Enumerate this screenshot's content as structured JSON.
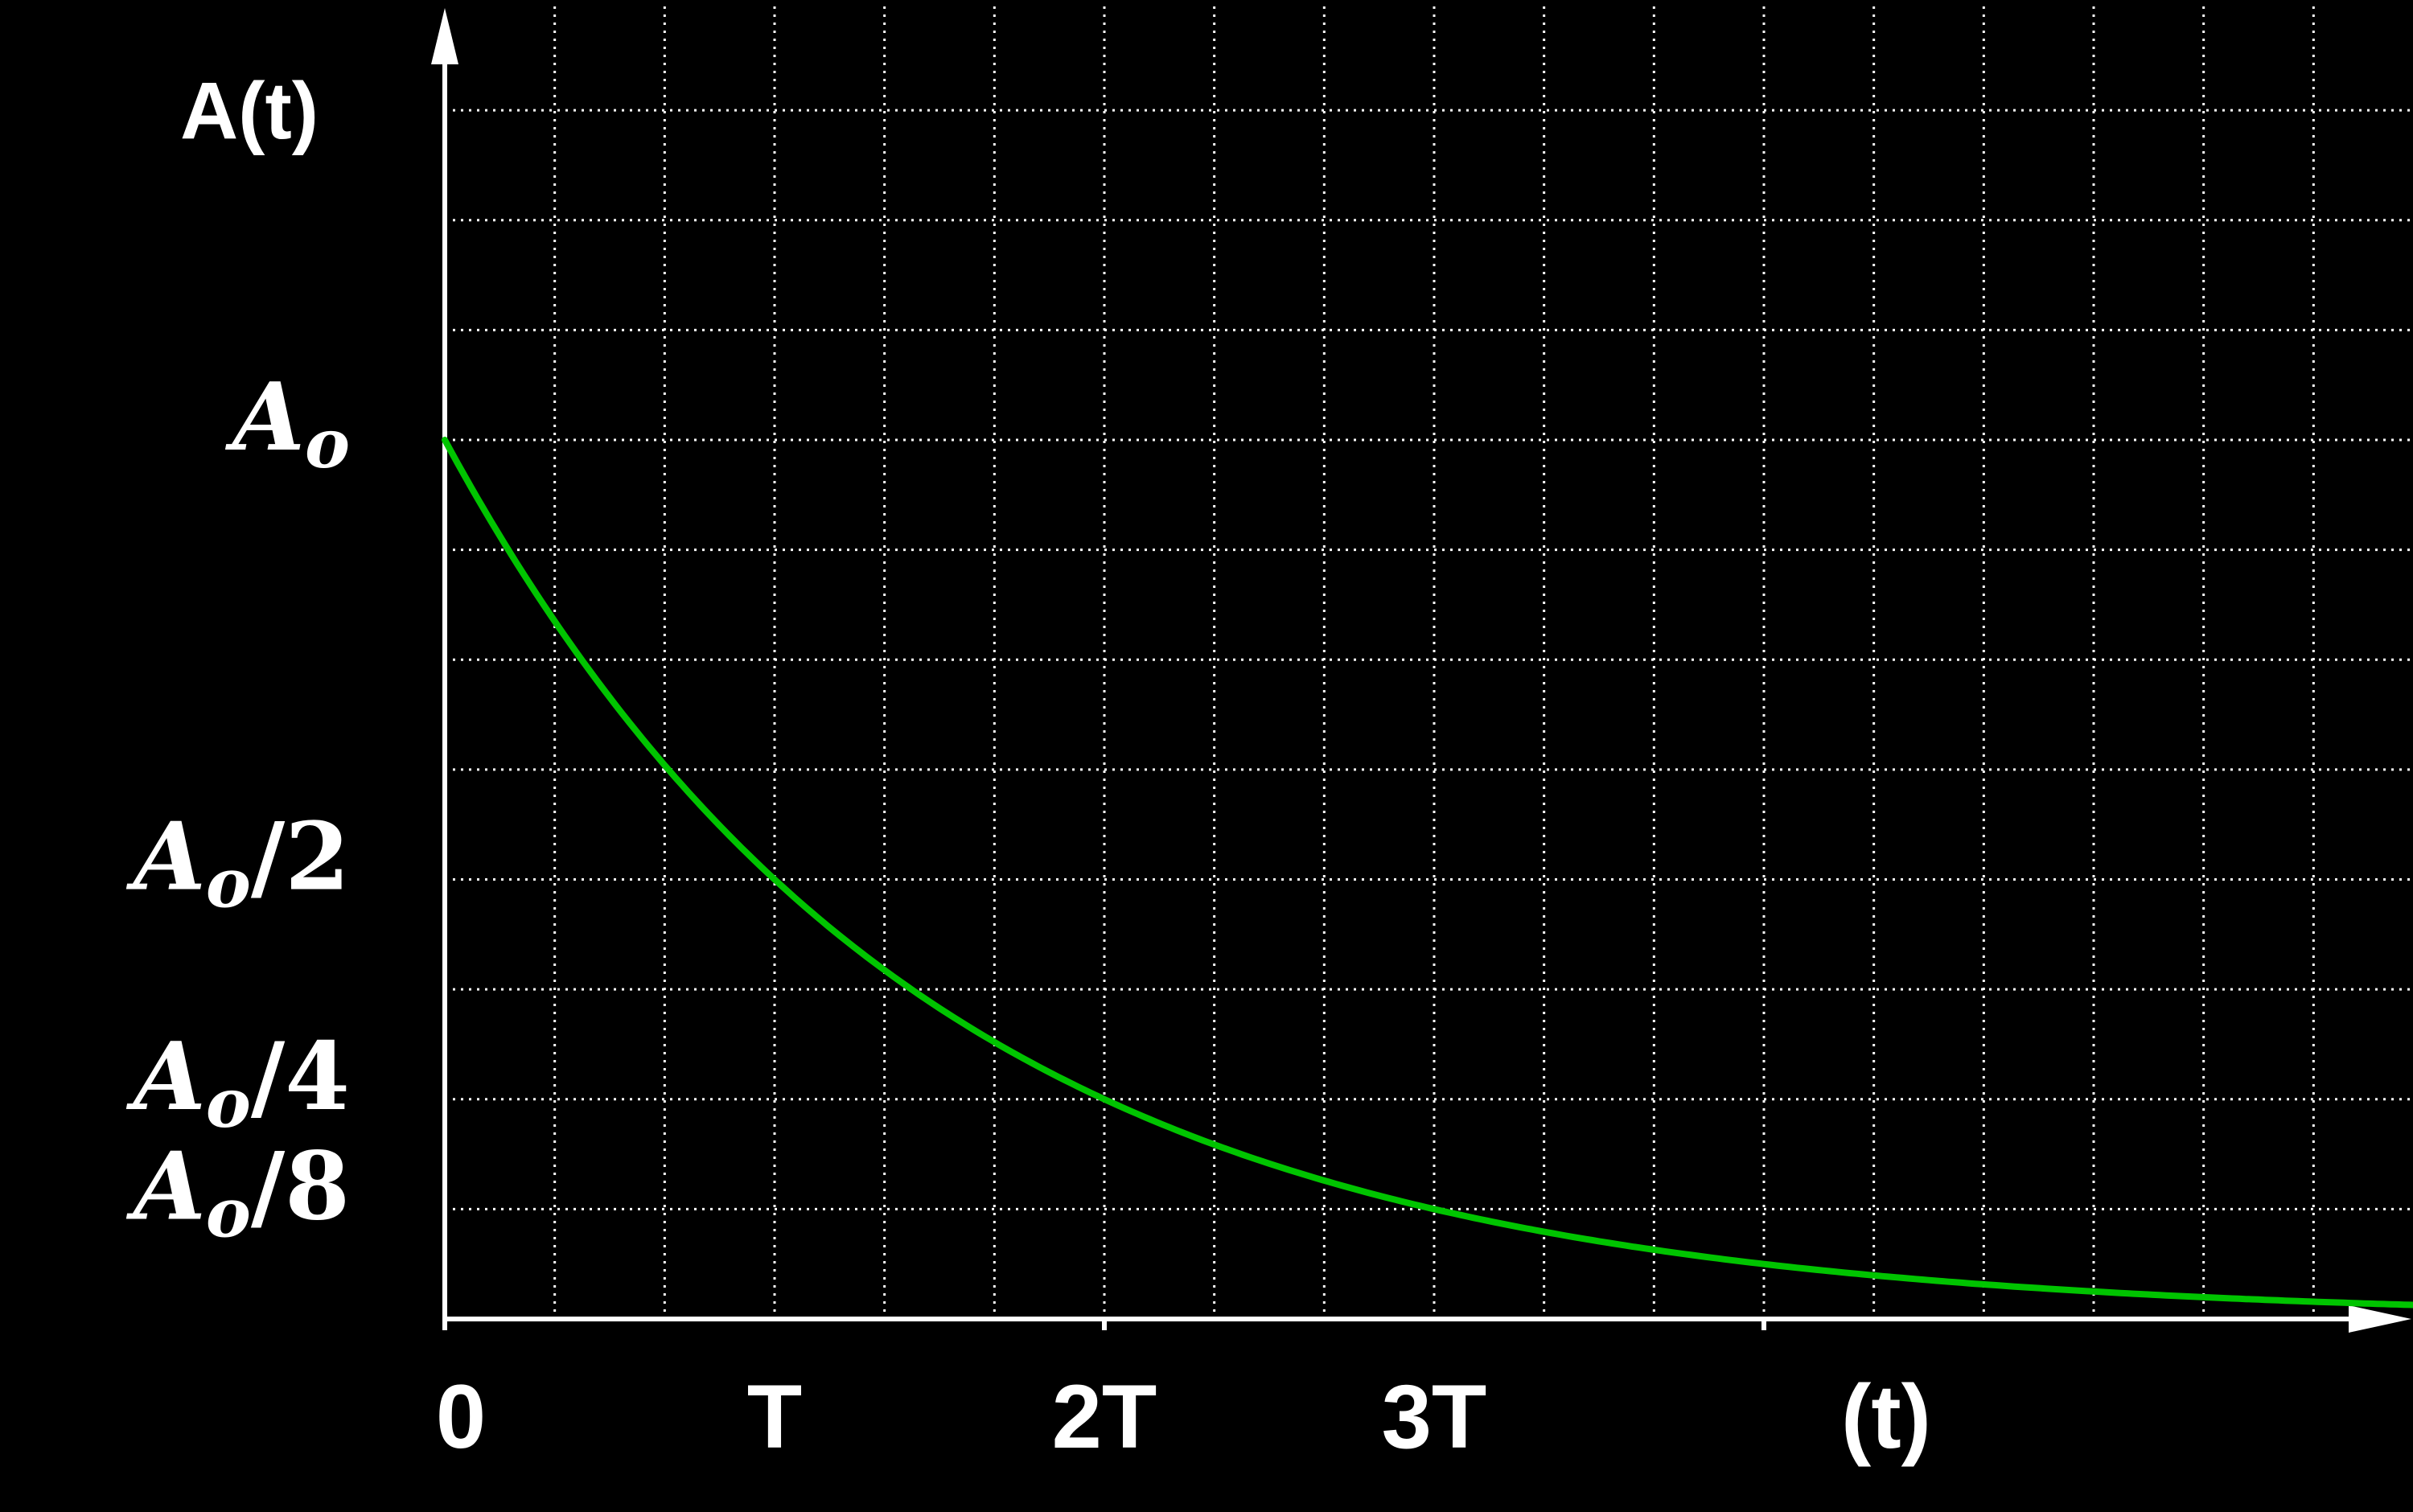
{
  "chart_data": {
    "type": "line",
    "title": "",
    "ylabel": "A(t)",
    "xlabel": "(t)",
    "grid": true,
    "colors": {
      "background": "#000000",
      "axis": "#ffffff",
      "grid": "#ffffff",
      "curve": "#00c400"
    },
    "x_ticks": [
      {
        "value": 0,
        "label": "0"
      },
      {
        "value": 1,
        "label": "T"
      },
      {
        "value": 2,
        "label": "2T"
      },
      {
        "value": 3,
        "label": "3T"
      }
    ],
    "y_ticks": [
      {
        "value": 1,
        "base": "A",
        "sub": "o",
        "suffix": ""
      },
      {
        "value": 0.5,
        "base": "A",
        "sub": "o",
        "suffix": "/2"
      },
      {
        "value": 0.25,
        "base": "A",
        "sub": "o",
        "suffix": "/4"
      },
      {
        "value": 0.125,
        "base": "A",
        "sub": "o",
        "suffix": "/8"
      }
    ],
    "xlim": [
      0,
      6
    ],
    "ylim": [
      0,
      2
    ],
    "series": [
      {
        "function": "exponential_decay",
        "initial_value": 1,
        "half_life": 1,
        "x_range": [
          0,
          6
        ]
      }
    ]
  }
}
